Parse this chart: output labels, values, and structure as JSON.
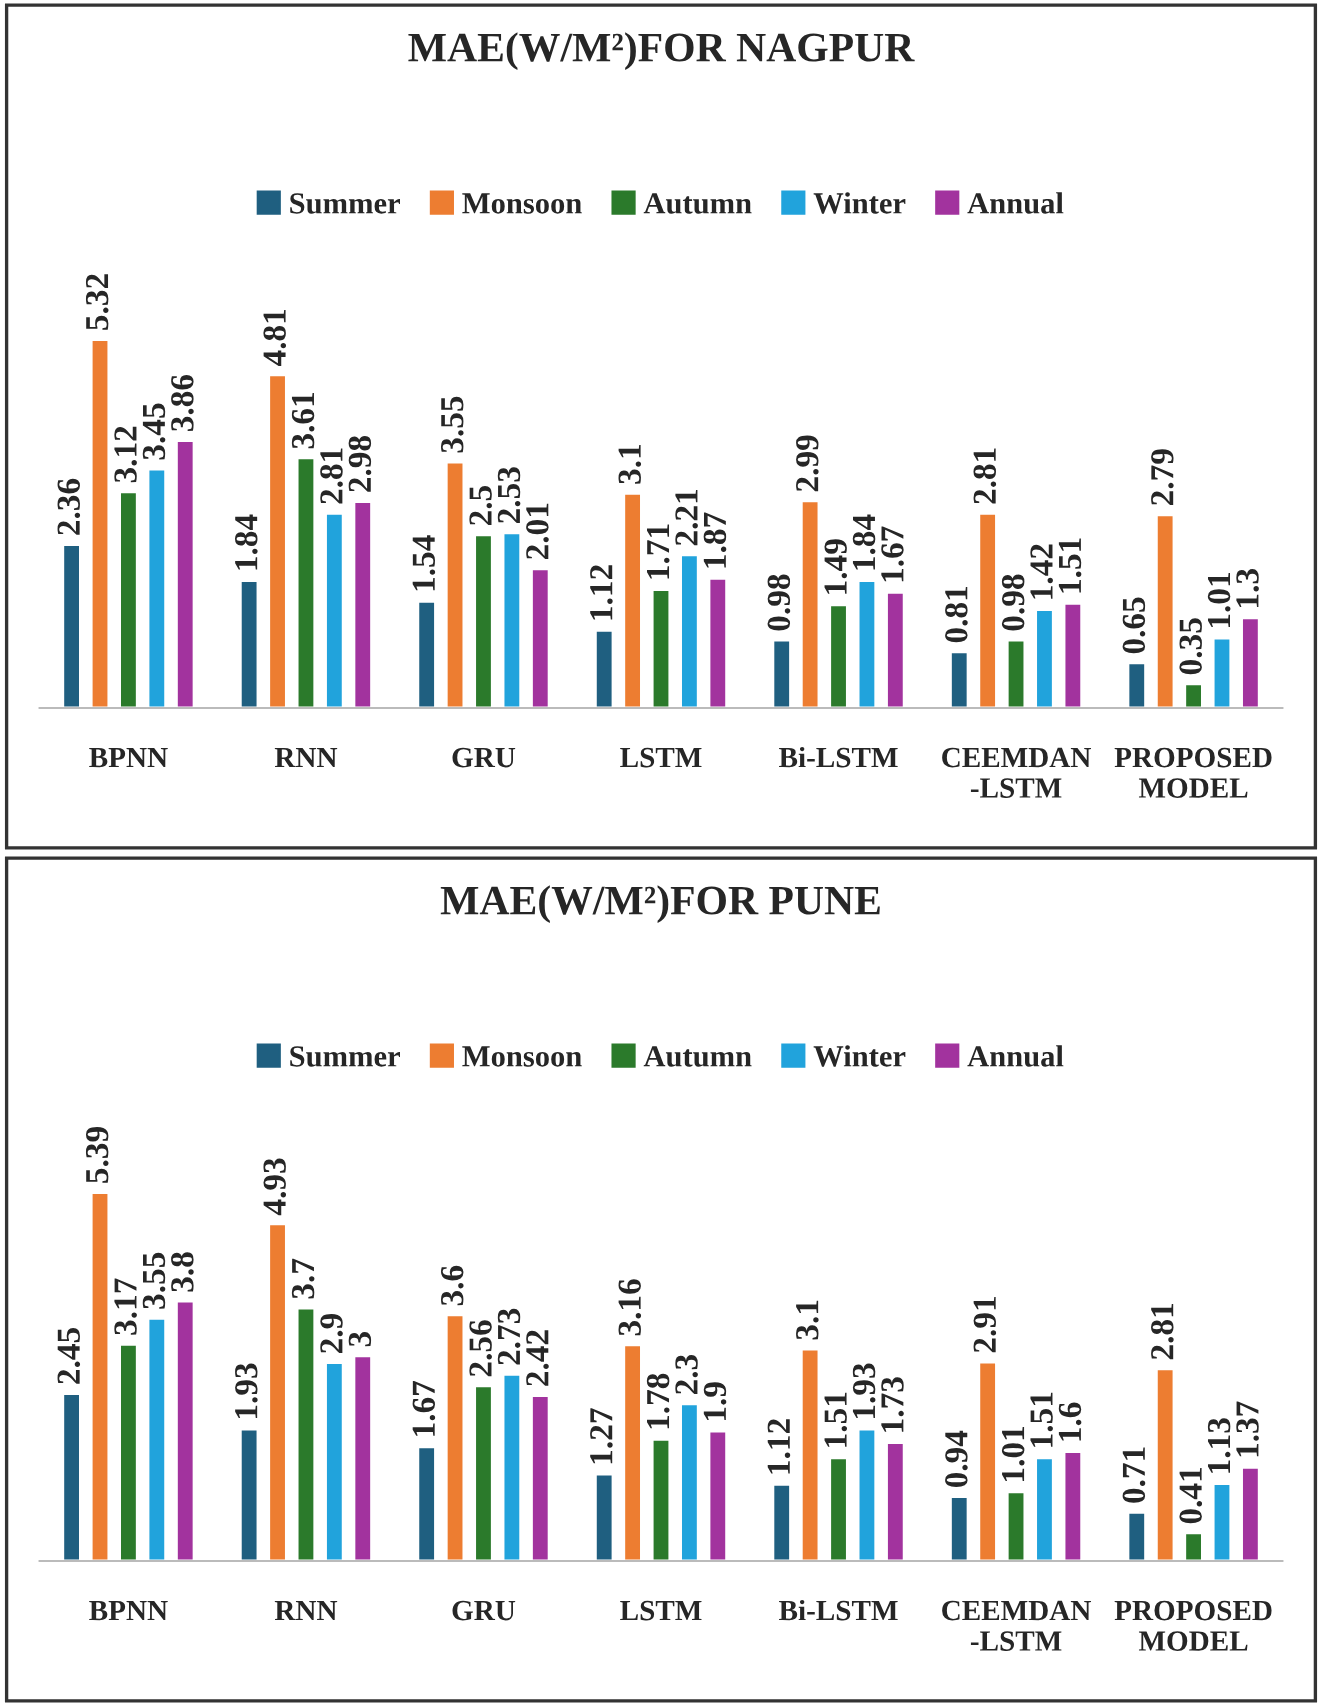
{
  "chart_data": [
    {
      "type": "bar",
      "title": "MAE(W/M²)FOR NAGPUR",
      "categories": [
        "BPNN",
        "RNN",
        "GRU",
        "LSTM",
        "Bi-LSTM",
        "CEEMDAN\n-LSTM",
        "PROPOSED\nMODEL"
      ],
      "data_labels": true,
      "legend": "top",
      "grid": false,
      "series": [
        {
          "name": "Summer",
          "color": "#1f5f80",
          "values": [
            2.36,
            1.84,
            1.54,
            1.12,
            0.98,
            0.81,
            0.65
          ]
        },
        {
          "name": "Monsoon",
          "color": "#ed7d31",
          "values": [
            5.32,
            4.81,
            3.55,
            3.1,
            2.99,
            2.81,
            2.79
          ]
        },
        {
          "name": "Autumn",
          "color": "#2b7a2b",
          "values": [
            3.12,
            3.61,
            2.5,
            1.71,
            1.49,
            0.98,
            0.35
          ]
        },
        {
          "name": "Winter",
          "color": "#21a3dc",
          "values": [
            3.45,
            2.81,
            2.53,
            2.21,
            1.84,
            1.42,
            1.01
          ]
        },
        {
          "name": "Annual",
          "color": "#a2339e",
          "values": [
            3.86,
            2.98,
            2.01,
            1.87,
            1.67,
            1.51,
            1.3
          ]
        }
      ]
    },
    {
      "type": "bar",
      "title": "MAE(W/M²)FOR PUNE",
      "categories": [
        "BPNN",
        "RNN",
        "GRU",
        "LSTM",
        "Bi-LSTM",
        "CEEMDAN\n-LSTM",
        "PROPOSED\nMODEL"
      ],
      "data_labels": true,
      "legend": "top",
      "grid": false,
      "series": [
        {
          "name": "Summer",
          "color": "#1f5f80",
          "values": [
            2.45,
            1.93,
            1.67,
            1.27,
            1.12,
            0.94,
            0.71
          ]
        },
        {
          "name": "Monsoon",
          "color": "#ed7d31",
          "values": [
            5.39,
            4.93,
            3.6,
            3.16,
            3.1,
            2.91,
            2.81
          ]
        },
        {
          "name": "Autumn",
          "color": "#2b7a2b",
          "values": [
            3.17,
            3.7,
            2.56,
            1.78,
            1.51,
            1.01,
            0.41
          ]
        },
        {
          "name": "Winter",
          "color": "#21a3dc",
          "values": [
            3.55,
            2.9,
            2.73,
            2.3,
            1.93,
            1.51,
            1.13
          ]
        },
        {
          "name": "Annual",
          "color": "#a2339e",
          "values": [
            3.8,
            3,
            2.42,
            1.9,
            1.73,
            1.6,
            1.37
          ]
        }
      ]
    }
  ]
}
